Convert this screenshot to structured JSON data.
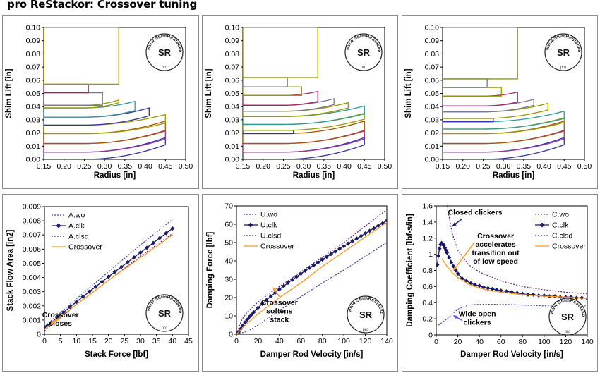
{
  "title": "pro ReStackor: Crossover tuning",
  "watermark": {
    "lines": [
      "www.ShimReStackor.com",
      "SR",
      "pro"
    ]
  },
  "colors": {
    "navy": "#1a1a66",
    "blue_dotted": "#4444cc",
    "purple_dotted": "#662288",
    "crossover": "#ff9922",
    "annotation_arrow": "#ff9922",
    "annotation_arrow_blue": "#5555ee",
    "frame": "#8c8c8c"
  },
  "chart_data": [
    {
      "id": "stack-a",
      "type": "line",
      "xlabel": "Radius [in]",
      "ylabel": "Shim Lift [in]",
      "xlim": [
        0.15,
        0.5
      ],
      "ylim": [
        0.0,
        0.1
      ],
      "xticks": [
        "0.15",
        "0.20",
        "0.25",
        "0.30",
        "0.35",
        "0.40",
        "0.45",
        "0.50"
      ],
      "yticks": [
        "0.00",
        "0.01",
        "0.02",
        "0.03",
        "0.04",
        "0.05",
        "0.06",
        "0.07",
        "0.08",
        "0.09",
        "0.10"
      ],
      "shims": [
        {
          "color": "#3333aa",
          "base": 0.0,
          "thick": 0.0055,
          "r": 0.45,
          "sag": 0.011
        },
        {
          "color": "#993399",
          "base": 0.0055,
          "thick": 0.0065,
          "r": 0.45,
          "sag": 0.01
        },
        {
          "color": "#aa5500",
          "base": 0.012,
          "thick": 0.0075,
          "r": 0.45,
          "sag": 0.0095
        },
        {
          "color": "#999900",
          "base": 0.0195,
          "thick": 0.0065,
          "r": 0.45,
          "sag": 0.008
        },
        {
          "color": "#3333aa",
          "base": 0.026,
          "thick": 0.006,
          "r": 0.41,
          "sag": 0.007
        },
        {
          "color": "#33999a",
          "base": 0.032,
          "thick": 0.007,
          "r": 0.375,
          "sag": 0.005
        },
        {
          "color": "#999900",
          "base": 0.039,
          "thick": 0.002,
          "r": 0.335,
          "sag": 0.004
        },
        {
          "color": "#777799",
          "base": 0.041,
          "thick": 0.0095,
          "r": 0.295,
          "sag": 0.0
        },
        {
          "color": "#aa2266",
          "base": 0.0505,
          "thick": 0.0065,
          "r": 0.26,
          "sag": 0.0
        },
        {
          "color": "#999900",
          "base": 0.057,
          "thick": 0.043,
          "r": 0.335,
          "sag": 0.0
        }
      ]
    },
    {
      "id": "stack-u",
      "type": "line",
      "xlabel": "Radius [in]",
      "ylabel": "Shim Lift [in]",
      "xlim": [
        0.15,
        0.5
      ],
      "ylim": [
        0.0,
        0.1
      ],
      "xticks": [
        "0.15",
        "0.20",
        "0.25",
        "0.30",
        "0.35",
        "0.40",
        "0.45",
        "0.50"
      ],
      "yticks": [
        "0.00",
        "0.01",
        "0.02",
        "0.03",
        "0.04",
        "0.05",
        "0.06",
        "0.07",
        "0.08",
        "0.09",
        "0.10"
      ],
      "shims": [
        {
          "color": "#3333aa",
          "base": 0.0,
          "thick": 0.0055,
          "r": 0.45,
          "sag": 0.011
        },
        {
          "color": "#993399",
          "base": 0.0055,
          "thick": 0.0065,
          "r": 0.45,
          "sag": 0.01
        },
        {
          "color": "#aa5500",
          "base": 0.012,
          "thick": 0.0075,
          "r": 0.45,
          "sag": 0.0095
        },
        {
          "color": "#3333aa",
          "base": 0.0195,
          "thick": 0.0025,
          "r": 0.275,
          "sag": 0.0
        },
        {
          "color": "#999900",
          "base": 0.022,
          "thick": 0.0045,
          "r": 0.45,
          "sag": 0.0085
        },
        {
          "color": "#33999a",
          "base": 0.0265,
          "thick": 0.006,
          "r": 0.45,
          "sag": 0.008
        },
        {
          "color": "#999900",
          "base": 0.0325,
          "thick": 0.004,
          "r": 0.41,
          "sag": 0.0065
        },
        {
          "color": "#777799",
          "base": 0.0365,
          "thick": 0.0045,
          "r": 0.375,
          "sag": 0.005
        },
        {
          "color": "#aa2266",
          "base": 0.041,
          "thick": 0.0075,
          "r": 0.335,
          "sag": 0.003
        },
        {
          "color": "#999900",
          "base": 0.0485,
          "thick": 0.0065,
          "r": 0.295,
          "sag": 0.0
        },
        {
          "color": "#777799",
          "base": 0.055,
          "thick": 0.007,
          "r": 0.26,
          "sag": 0.0
        },
        {
          "color": "#999900",
          "base": 0.062,
          "thick": 0.038,
          "r": 0.335,
          "sag": 0.0
        }
      ]
    },
    {
      "id": "stack-c",
      "type": "line",
      "xlabel": "Radius [in]",
      "ylabel": "Shim Lift [in]",
      "xlim": [
        0.15,
        0.5
      ],
      "ylim": [
        0.0,
        0.1
      ],
      "xticks": [
        "0.15",
        "0.20",
        "0.25",
        "0.30",
        "0.35",
        "0.40",
        "0.45",
        "0.50"
      ],
      "yticks": [
        "0.00",
        "0.01",
        "0.02",
        "0.03",
        "0.04",
        "0.05",
        "0.06",
        "0.07",
        "0.08",
        "0.09",
        "0.10"
      ],
      "shims": [
        {
          "color": "#3333aa",
          "base": 0.0,
          "thick": 0.0055,
          "r": 0.45,
          "sag": 0.011
        },
        {
          "color": "#993399",
          "base": 0.0055,
          "thick": 0.0065,
          "r": 0.45,
          "sag": 0.01
        },
        {
          "color": "#aa5500",
          "base": 0.012,
          "thick": 0.0075,
          "r": 0.45,
          "sag": 0.0095
        },
        {
          "color": "#999900",
          "base": 0.0195,
          "thick": 0.0035,
          "r": 0.45,
          "sag": 0.0085
        },
        {
          "color": "#33999a",
          "base": 0.023,
          "thick": 0.0055,
          "r": 0.45,
          "sag": 0.008
        },
        {
          "color": "#3333aa",
          "base": 0.0285,
          "thick": 0.0025,
          "r": 0.275,
          "sag": 0.0
        },
        {
          "color": "#999900",
          "base": 0.031,
          "thick": 0.005,
          "r": 0.41,
          "sag": 0.0065
        },
        {
          "color": "#777799",
          "base": 0.036,
          "thick": 0.0045,
          "r": 0.375,
          "sag": 0.005
        },
        {
          "color": "#aa2266",
          "base": 0.0405,
          "thick": 0.0075,
          "r": 0.335,
          "sag": 0.003
        },
        {
          "color": "#999900",
          "base": 0.048,
          "thick": 0.0065,
          "r": 0.295,
          "sag": 0.0
        },
        {
          "color": "#777799",
          "base": 0.0545,
          "thick": 0.0065,
          "r": 0.26,
          "sag": 0.0
        },
        {
          "color": "#999900",
          "base": 0.061,
          "thick": 0.039,
          "r": 0.335,
          "sag": 0.0
        }
      ]
    },
    {
      "id": "flow-area",
      "type": "line",
      "xlabel": "Stack Force [lbf]",
      "ylabel": "Stack Flow Area [in2]",
      "xlim": [
        0,
        45
      ],
      "ylim": [
        0,
        0.009
      ],
      "xticks": [
        "0",
        "5",
        "10",
        "15",
        "20",
        "25",
        "30",
        "35",
        "40",
        "45"
      ],
      "yticks": [
        "0",
        "0.001",
        "0.002",
        "0.003",
        "0.004",
        "0.005",
        "0.006",
        "0.007",
        "0.008",
        "0.009"
      ],
      "legend_position": "top-left",
      "series": [
        {
          "name": "A.wo",
          "style": "dotted-blue",
          "x": [
            0,
            10,
            20,
            30,
            40
          ],
          "y": [
            0.00055,
            0.0025,
            0.0044,
            0.0063,
            0.0081
          ]
        },
        {
          "name": "A.clk",
          "style": "markers",
          "x": [
            0,
            1,
            2,
            4,
            6,
            8,
            10,
            12,
            14,
            16,
            18,
            20,
            22,
            24,
            26,
            28,
            30,
            32,
            34,
            36,
            38,
            40
          ],
          "y": [
            0.00045,
            0.00062,
            0.0008,
            0.00118,
            0.00155,
            0.00192,
            0.00228,
            0.00265,
            0.003,
            0.00335,
            0.0037,
            0.00405,
            0.0044,
            0.00474,
            0.00508,
            0.00542,
            0.00576,
            0.0061,
            0.00644,
            0.00678,
            0.00712,
            0.00746
          ]
        },
        {
          "name": "A.clsd",
          "style": "dotted-purple",
          "x": [
            0,
            10,
            20,
            30,
            40
          ],
          "y": [
            0.00022,
            0.0021,
            0.0038,
            0.0055,
            0.0071
          ]
        },
        {
          "name": "Crossover",
          "style": "solid-orange",
          "x": [
            0,
            10,
            20,
            30,
            40
          ],
          "y": [
            0.00035,
            0.0021,
            0.0038,
            0.0054,
            0.007
          ]
        }
      ],
      "annotations": [
        {
          "text": [
            "Crossover",
            "closes"
          ],
          "x": 5,
          "y": 0.0012
        }
      ]
    },
    {
      "id": "damping-force",
      "type": "line",
      "xlabel": "Damper Rod Velocity [in/s]",
      "ylabel": "Damping Force [lbf]",
      "xlim": [
        0,
        140
      ],
      "ylim": [
        0,
        70
      ],
      "xticks": [
        "0",
        "20",
        "40",
        "60",
        "80",
        "100",
        "120",
        "140"
      ],
      "yticks": [
        "0",
        "10",
        "20",
        "30",
        "40",
        "50",
        "60",
        "70"
      ],
      "legend_position": "top-left",
      "series": [
        {
          "name": "U.wo",
          "style": "dotted-blue",
          "x": [
            0,
            10,
            20,
            40,
            60,
            80,
            100,
            120,
            140
          ],
          "y": [
            0,
            1.5,
            5,
            13,
            20.5,
            28,
            35,
            42.5,
            50
          ]
        },
        {
          "name": "U.clk",
          "style": "markers",
          "x": [
            0,
            2,
            4,
            6,
            8,
            10,
            12,
            14,
            16,
            20,
            24,
            28,
            32,
            36,
            40,
            44,
            48,
            52,
            56,
            60,
            64,
            68,
            72,
            76,
            80,
            84,
            88,
            92,
            96,
            100,
            104,
            108,
            112,
            116,
            120,
            124,
            128,
            132,
            136,
            140
          ],
          "y": [
            0,
            1.2,
            3,
            4.8,
            6.5,
            8,
            9.4,
            10.7,
            12,
            14.4,
            16.6,
            18.7,
            20.7,
            22.6,
            24.5,
            26.3,
            28,
            29.7,
            31.4,
            33,
            34.6,
            36.2,
            37.7,
            39.2,
            40.7,
            42.2,
            43.7,
            45.1,
            46.6,
            48,
            49.4,
            50.8,
            52.2,
            53.6,
            55,
            56.4,
            57.8,
            59.2,
            60.5,
            62
          ]
        },
        {
          "name": "U.clsd",
          "style": "dotted-purple",
          "x": [
            0,
            5,
            10,
            20,
            30,
            40,
            60,
            80,
            100,
            120,
            140
          ],
          "y": [
            0,
            8,
            12,
            17.5,
            22,
            26,
            34,
            42,
            50,
            59,
            68
          ]
        },
        {
          "name": "Crossover",
          "style": "solid-orange",
          "x": [
            0,
            5,
            10,
            20,
            40,
            60,
            80,
            100,
            120,
            140
          ],
          "y": [
            0,
            3,
            6,
            11,
            20,
            28,
            37,
            45,
            53,
            61
          ]
        }
      ],
      "annotations": [
        {
          "text": [
            "Crossover",
            "softens",
            "stack"
          ],
          "x": 40,
          "y": 16
        }
      ]
    },
    {
      "id": "damping-coefficient",
      "type": "line",
      "xlabel": "Damper Rod Velocity [in/s]",
      "ylabel": "Damping Coefficient [lbf-s/in]",
      "xlim": [
        0,
        140
      ],
      "ylim": [
        0,
        1.6
      ],
      "xticks": [
        "0",
        "20",
        "40",
        "60",
        "80",
        "100",
        "120",
        "140"
      ],
      "yticks": [
        "0",
        "0.2",
        "0.4",
        "0.6",
        "0.8",
        "1",
        "1.2",
        "1.4",
        "1.6"
      ],
      "legend_position": "top-right",
      "series": [
        {
          "name": "C.wo",
          "style": "dotted-blue",
          "x": [
            2,
            10,
            20,
            30,
            40,
            60,
            80,
            100,
            120,
            140
          ],
          "y": [
            0.12,
            0.2,
            0.32,
            0.37,
            0.38,
            0.38,
            0.37,
            0.36,
            0.36,
            0.36
          ]
        },
        {
          "name": "C.clk",
          "style": "markers",
          "x": [
            1,
            2,
            3,
            4,
            5,
            6,
            7,
            8,
            9,
            10,
            12,
            14,
            16,
            18,
            20,
            24,
            28,
            32,
            36,
            40,
            44,
            48,
            52,
            56,
            60,
            65,
            70,
            75,
            80,
            85,
            90,
            95,
            100,
            105,
            110,
            115,
            120,
            125,
            130,
            135,
            140
          ],
          "y": [
            0.87,
            0.98,
            1.07,
            1.12,
            1.14,
            1.13,
            1.11,
            1.08,
            1.05,
            1.02,
            0.96,
            0.9,
            0.85,
            0.8,
            0.76,
            0.7,
            0.67,
            0.64,
            0.62,
            0.61,
            0.59,
            0.58,
            0.57,
            0.56,
            0.55,
            0.54,
            0.53,
            0.52,
            0.51,
            0.5,
            0.5,
            0.49,
            0.49,
            0.48,
            0.48,
            0.47,
            0.47,
            0.47,
            0.46,
            0.46,
            0.45
          ]
        },
        {
          "name": "C.clsd",
          "style": "dotted-purple",
          "x": [
            10,
            15,
            20,
            30,
            40,
            60,
            80,
            100,
            120,
            140
          ],
          "y": [
            1.6,
            1.25,
            1.05,
            0.87,
            0.78,
            0.67,
            0.6,
            0.56,
            0.53,
            0.51
          ]
        },
        {
          "name": "Crossover",
          "style": "solid-orange",
          "x": [
            5,
            10,
            15,
            20,
            25,
            30,
            40,
            50,
            60,
            80,
            100,
            120,
            140
          ],
          "y": [
            0.95,
            0.85,
            0.77,
            0.71,
            0.67,
            0.63,
            0.58,
            0.55,
            0.53,
            0.5,
            0.48,
            0.47,
            0.45
          ]
        }
      ],
      "annotations": [
        {
          "text": [
            "Closed clickers"
          ],
          "x": 36,
          "y": 1.49
        },
        {
          "text": [
            "Crossover",
            "accelerates",
            "transition out",
            "of low speed"
          ],
          "x": 55,
          "y": 1.2
        },
        {
          "text": [
            "Wide open",
            "clickers"
          ],
          "x": 38,
          "y": 0.23
        }
      ]
    }
  ]
}
